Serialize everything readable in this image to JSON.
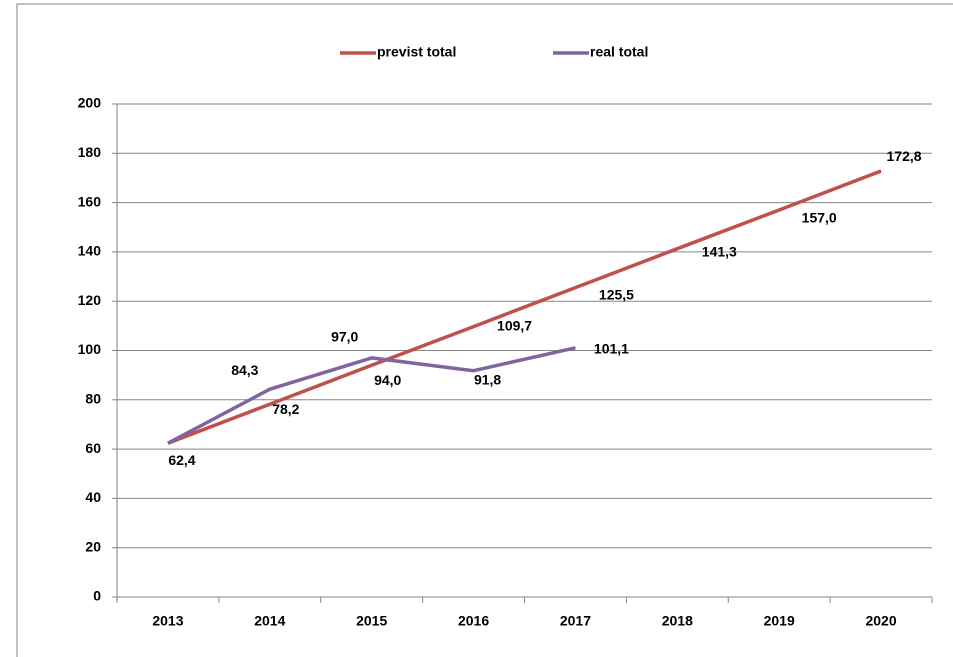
{
  "chart_data": {
    "type": "line",
    "categories": [
      "2013",
      "2014",
      "2015",
      "2016",
      "2017",
      "2018",
      "2019",
      "2020"
    ],
    "series": [
      {
        "name": "previst total",
        "color": "#c0504d",
        "values": [
          62.4,
          78.2,
          94.0,
          109.7,
          125.5,
          141.3,
          157.0,
          172.8
        ],
        "value_labels": [
          "62,4",
          "78,2",
          "94,0",
          "109,7",
          "125,5",
          "141,3",
          "157,0",
          "172,8"
        ]
      },
      {
        "name": "real total",
        "color": "#8064a2",
        "values": [
          62.4,
          84.3,
          97.0,
          91.8,
          101.1,
          null,
          null,
          null
        ],
        "value_labels": [
          null,
          "84,3",
          "97,0",
          "91,8",
          "101,1",
          null,
          null,
          null
        ]
      }
    ],
    "ylim": [
      0,
      200
    ],
    "yticks": [
      0,
      20,
      40,
      60,
      80,
      100,
      120,
      140,
      160,
      180,
      200
    ],
    "grid": true,
    "legend": "top"
  }
}
